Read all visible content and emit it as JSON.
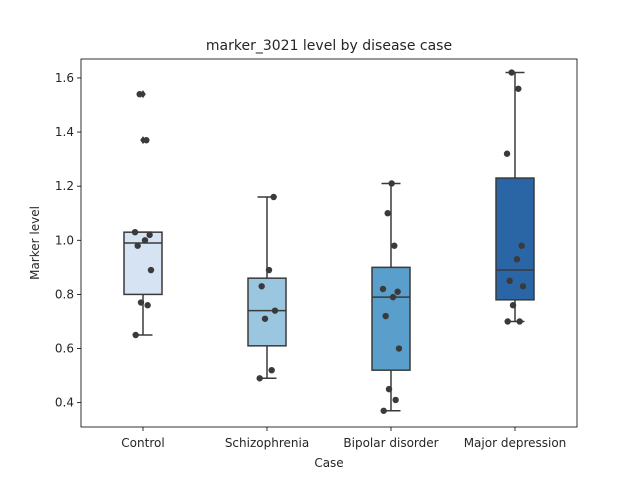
{
  "chart_data": {
    "type": "boxplot",
    "title": "marker_3021 level by disease case",
    "xlabel": "Case",
    "ylabel": "Marker level",
    "ylim": [
      0.31,
      1.67
    ],
    "yticks": [
      "0.4",
      "0.6",
      "0.8",
      "1.0",
      "1.2",
      "1.4",
      "1.6"
    ],
    "grid": false,
    "categories": [
      "Control",
      "Schizophrenia",
      "Bipolar disorder",
      "Major depression"
    ],
    "boxes": [
      {
        "name": "Control",
        "color": "#d5e3f2",
        "whisker_low": 0.65,
        "q1": 0.8,
        "median": 0.99,
        "q3": 1.03,
        "whisker_high": 1.03,
        "outliers": [
          1.37,
          1.54
        ]
      },
      {
        "name": "Schizophrenia",
        "color": "#9ac6e0",
        "whisker_low": 0.49,
        "q1": 0.61,
        "median": 0.74,
        "q3": 0.86,
        "whisker_high": 1.16,
        "outliers": []
      },
      {
        "name": "Bipolar disorder",
        "color": "#5a9ecb",
        "whisker_low": 0.37,
        "q1": 0.52,
        "median": 0.79,
        "q3": 0.9,
        "whisker_high": 1.21,
        "outliers": []
      },
      {
        "name": "Major depression",
        "color": "#2a66a6",
        "whisker_low": 0.7,
        "q1": 0.78,
        "median": 0.89,
        "q3": 1.23,
        "whisker_high": 1.62,
        "outliers": []
      }
    ],
    "points": [
      {
        "category": "Control",
        "values": [
          0.65,
          0.76,
          0.77,
          0.89,
          0.98,
          1.0,
          1.02,
          1.03,
          1.37,
          1.54
        ]
      },
      {
        "category": "Schizophrenia",
        "values": [
          0.49,
          0.52,
          0.71,
          0.74,
          0.83,
          0.89,
          1.16
        ]
      },
      {
        "category": "Bipolar disorder",
        "values": [
          0.37,
          0.41,
          0.45,
          0.6,
          0.72,
          0.79,
          0.81,
          0.82,
          0.98,
          1.1,
          1.21
        ]
      },
      {
        "category": "Major depression",
        "values": [
          0.7,
          0.7,
          0.76,
          0.83,
          0.85,
          0.93,
          0.98,
          1.32,
          1.56,
          1.62
        ]
      }
    ],
    "colors": {
      "edge": "#3a3a3a",
      "point": "#3a3a3a"
    }
  }
}
